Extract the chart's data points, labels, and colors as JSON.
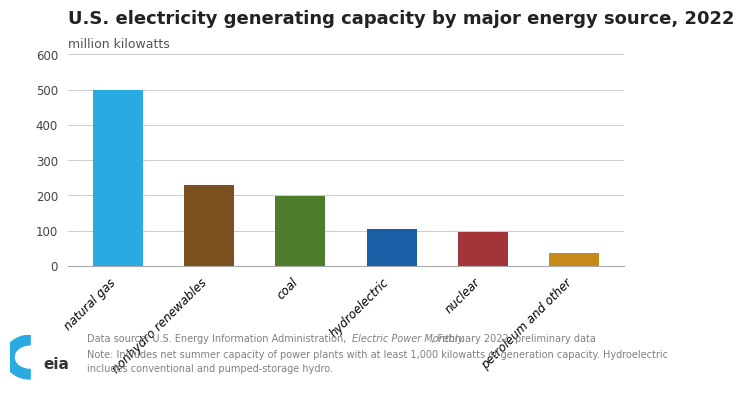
{
  "title": "U.S. electricity generating capacity by major energy source, 2022",
  "ylabel": "million kilowatts",
  "categories": [
    "natural gas",
    "nonhydro renewables",
    "coal",
    "hydroelectric",
    "nuclear",
    "petroleum and other"
  ],
  "values": [
    499,
    229,
    198,
    104,
    95,
    38
  ],
  "bar_colors": [
    "#29ABE2",
    "#7B4F1E",
    "#4D7C2A",
    "#1A5FA6",
    "#A3343A",
    "#C68A1A"
  ],
  "ylim": [
    0,
    600
  ],
  "yticks": [
    0,
    100,
    200,
    300,
    400,
    500,
    600
  ],
  "background_color": "#FFFFFF",
  "title_fontsize": 13,
  "ylabel_fontsize": 9,
  "tick_fontsize": 8.5,
  "footnote_fontsize": 7,
  "footnote_color": "#808080",
  "grid_color": "#CCCCCC",
  "spine_color": "#AAAAAA"
}
